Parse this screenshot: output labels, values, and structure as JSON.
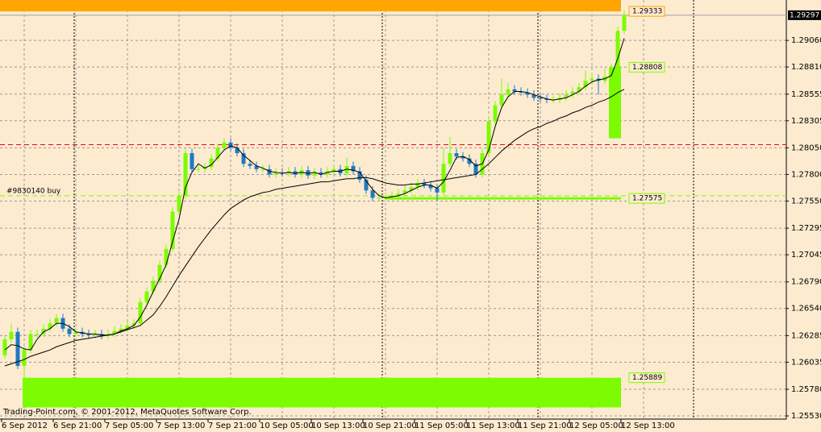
{
  "chart_data": {
    "type": "candlestick",
    "up_color": "#7cfc00",
    "down_color": "#1f7ac0",
    "background": "#fdebd0",
    "grid": true,
    "ylim": [
      1.255,
      1.2944
    ],
    "yticks": [
      {
        "value": 1.2906,
        "label": "1.29060"
      },
      {
        "value": 1.2881,
        "label": "1.28810"
      },
      1.28555,
      1.28305,
      {
        "value": 1.2805,
        "label": "1.28050"
      },
      {
        "value": 1.278,
        "label": "1.27800"
      },
      {
        "value": 1.2755,
        "label": "1.27550"
      },
      1.27295,
      1.27045,
      {
        "value": 1.2679,
        "label": "1.26790"
      },
      {
        "value": 1.2654,
        "label": "1.26540"
      },
      1.26285,
      1.26035,
      {
        "value": 1.2578,
        "label": "1.25780"
      },
      {
        "value": 1.2553,
        "label": "1.25530"
      }
    ],
    "last_price": 1.29297,
    "categories": [
      "6 Sep 2012",
      null,
      null,
      null,
      null,
      null,
      null,
      null,
      "6 Sep 21:00",
      null,
      null,
      null,
      null,
      null,
      null,
      null,
      "7 Sep 05:00",
      null,
      null,
      null,
      null,
      null,
      null,
      null,
      "7 Sep 13:00",
      null,
      null,
      null,
      null,
      null,
      null,
      null,
      "7 Sep 21:00",
      null,
      null,
      null,
      null,
      null,
      null,
      null,
      "10 Sep 05:00",
      null,
      null,
      null,
      null,
      null,
      null,
      null,
      "10 Sep 13:00",
      null,
      null,
      null,
      null,
      null,
      null,
      null,
      "10 Sep 21:00",
      null,
      null,
      null,
      null,
      null,
      null,
      null,
      "11 Sep 05:00",
      null,
      null,
      null,
      null,
      null,
      null,
      null,
      "11 Sep 13:00",
      null,
      null,
      null,
      null,
      null,
      null,
      null,
      "11 Sep 21:00",
      null,
      null,
      null,
      null,
      null,
      null,
      null,
      "12 Sep 05:00",
      null,
      null,
      null,
      null,
      null,
      null,
      null,
      "12 Sep 13:00"
    ],
    "candles": [
      [
        1.261,
        1.2629,
        1.2607,
        1.2625
      ],
      [
        1.2625,
        1.264,
        1.2622,
        1.2632
      ],
      [
        1.2632,
        1.2636,
        1.2597,
        1.26
      ],
      [
        1.26,
        1.2619,
        1.2561,
        1.2615
      ],
      [
        1.2615,
        1.2634,
        1.2612,
        1.263
      ],
      [
        1.263,
        1.2634,
        1.2627,
        1.263
      ],
      [
        1.263,
        1.2639,
        1.2627,
        1.2635
      ],
      [
        1.2635,
        1.2644,
        1.2632,
        1.264
      ],
      [
        1.264,
        1.2649,
        1.2637,
        1.2645
      ],
      [
        1.2645,
        1.2649,
        1.2632,
        1.2635
      ],
      [
        1.2635,
        1.2639,
        1.2627,
        1.263
      ],
      [
        1.263,
        1.2636,
        1.2627,
        1.2632
      ],
      [
        1.2632,
        1.2636,
        1.2627,
        1.263
      ],
      [
        1.263,
        1.2634,
        1.2626,
        1.2629
      ],
      [
        1.2629,
        1.2634,
        1.2626,
        1.263
      ],
      [
        1.263,
        1.2634,
        1.2625,
        1.2628
      ],
      [
        1.2628,
        1.2634,
        1.2625,
        1.263
      ],
      [
        1.263,
        1.2637,
        1.2627,
        1.2633
      ],
      [
        1.2633,
        1.2639,
        1.263,
        1.2635
      ],
      [
        1.2635,
        1.2642,
        1.2632,
        1.2638
      ],
      [
        1.2638,
        1.2644,
        1.2635,
        1.264
      ],
      [
        1.264,
        1.2664,
        1.2637,
        1.266
      ],
      [
        1.266,
        1.2674,
        1.2657,
        1.267
      ],
      [
        1.267,
        1.2684,
        1.2667,
        1.268
      ],
      [
        1.268,
        1.2699,
        1.2677,
        1.2695
      ],
      [
        1.2695,
        1.2714,
        1.2692,
        1.271
      ],
      [
        1.271,
        1.2749,
        1.2707,
        1.2745
      ],
      [
        1.2745,
        1.2764,
        1.2742,
        1.276
      ],
      [
        1.276,
        1.2804,
        1.2757,
        1.28
      ],
      [
        1.28,
        1.2804,
        1.2782,
        1.2785
      ],
      [
        1.2785,
        1.2789,
        1.2782,
        1.2785
      ],
      [
        1.2785,
        1.2791,
        1.2782,
        1.2787
      ],
      [
        1.2787,
        1.2799,
        1.2784,
        1.2795
      ],
      [
        1.2795,
        1.2809,
        1.2792,
        1.2805
      ],
      [
        1.2805,
        1.2814,
        1.2802,
        1.281
      ],
      [
        1.281,
        1.2814,
        1.2802,
        1.2805
      ],
      [
        1.2805,
        1.2809,
        1.2797,
        1.28
      ],
      [
        1.28,
        1.2804,
        1.2787,
        1.279
      ],
      [
        1.279,
        1.2794,
        1.2785,
        1.2788
      ],
      [
        1.2788,
        1.2792,
        1.2782,
        1.2785
      ],
      [
        1.2785,
        1.2789,
        1.2782,
        1.2785
      ],
      [
        1.2785,
        1.2789,
        1.2777,
        1.278
      ],
      [
        1.278,
        1.2786,
        1.2777,
        1.2782
      ],
      [
        1.2782,
        1.2786,
        1.2778,
        1.2781
      ],
      [
        1.2781,
        1.2787,
        1.2778,
        1.2783
      ],
      [
        1.2783,
        1.2787,
        1.2777,
        1.278
      ],
      [
        1.278,
        1.2788,
        1.2777,
        1.2784
      ],
      [
        1.2784,
        1.2788,
        1.2776,
        1.2779
      ],
      [
        1.2779,
        1.2786,
        1.2776,
        1.2782
      ],
      [
        1.2782,
        1.2786,
        1.2777,
        1.278
      ],
      [
        1.278,
        1.2787,
        1.2777,
        1.2783
      ],
      [
        1.2783,
        1.2789,
        1.278,
        1.2785
      ],
      [
        1.2785,
        1.2789,
        1.2778,
        1.2781
      ],
      [
        1.2781,
        1.2796,
        1.2778,
        1.2788
      ],
      [
        1.2788,
        1.2792,
        1.278,
        1.2783
      ],
      [
        1.2783,
        1.2787,
        1.2772,
        1.2775
      ],
      [
        1.2775,
        1.2779,
        1.2762,
        1.2765
      ],
      [
        1.2765,
        1.2769,
        1.2755,
        1.2758
      ],
      [
        1.2758,
        1.2762,
        1.2755,
        1.2758
      ],
      [
        1.2758,
        1.2763,
        1.2755,
        1.2759
      ],
      [
        1.2759,
        1.2764,
        1.2756,
        1.276
      ],
      [
        1.276,
        1.2766,
        1.2757,
        1.2762
      ],
      [
        1.2762,
        1.2769,
        1.2759,
        1.2765
      ],
      [
        1.2765,
        1.2772,
        1.2762,
        1.2768
      ],
      [
        1.2768,
        1.2776,
        1.2765,
        1.2772
      ],
      [
        1.2772,
        1.2776,
        1.2767,
        1.277
      ],
      [
        1.277,
        1.2774,
        1.2764,
        1.2767
      ],
      [
        1.2767,
        1.2771,
        1.2755,
        1.2763
      ],
      [
        1.2763,
        1.2805,
        1.276,
        1.279
      ],
      [
        1.279,
        1.2815,
        1.2787,
        1.28
      ],
      [
        1.28,
        1.2804,
        1.2794,
        1.2797
      ],
      [
        1.2797,
        1.2801,
        1.2792,
        1.2795
      ],
      [
        1.2795,
        1.2799,
        1.2787,
        1.279
      ],
      [
        1.279,
        1.2794,
        1.2777,
        1.278
      ],
      [
        1.278,
        1.2804,
        1.2777,
        1.28
      ],
      [
        1.28,
        1.2834,
        1.2797,
        1.283
      ],
      [
        1.283,
        1.2849,
        1.2827,
        1.2845
      ],
      [
        1.2845,
        1.287,
        1.2842,
        1.2855
      ],
      [
        1.2855,
        1.2866,
        1.2852,
        1.286
      ],
      [
        1.286,
        1.2864,
        1.2855,
        1.2858
      ],
      [
        1.2858,
        1.2862,
        1.2854,
        1.2857
      ],
      [
        1.2857,
        1.2861,
        1.2852,
        1.2855
      ],
      [
        1.2855,
        1.2859,
        1.2849,
        1.2852
      ],
      [
        1.2852,
        1.2856,
        1.2848,
        1.2851
      ],
      [
        1.2851,
        1.2855,
        1.2847,
        1.285
      ],
      [
        1.285,
        1.2854,
        1.2847,
        1.285
      ],
      [
        1.285,
        1.2856,
        1.2847,
        1.2852
      ],
      [
        1.2852,
        1.2859,
        1.2849,
        1.2855
      ],
      [
        1.2855,
        1.2862,
        1.2852,
        1.2858
      ],
      [
        1.2858,
        1.2866,
        1.2855,
        1.2862
      ],
      [
        1.2862,
        1.2878,
        1.2859,
        1.2868
      ],
      [
        1.2868,
        1.2876,
        1.2865,
        1.287
      ],
      [
        1.287,
        1.2874,
        1.2855,
        1.2868
      ],
      [
        1.2868,
        1.288,
        1.2865,
        1.2872
      ],
      [
        1.2872,
        1.2884,
        1.2869,
        1.288
      ],
      [
        1.288,
        1.2919,
        1.2877,
        1.2915
      ],
      [
        1.2915,
        1.2934,
        1.2912,
        1.293
      ]
    ],
    "moving_averages": [
      {
        "color": "#000000",
        "values": [
          1.2615,
          1.262,
          1.2619,
          1.2616,
          1.2615,
          1.2625,
          1.2632,
          1.2635,
          1.264,
          1.264,
          1.2637,
          1.2632,
          1.2631,
          1.263,
          1.263,
          1.2629,
          1.2629,
          1.263,
          1.2633,
          1.2635,
          1.2638,
          1.2646,
          1.2657,
          1.267,
          1.2682,
          1.2695,
          1.2717,
          1.2738,
          1.2768,
          1.2782,
          1.279,
          1.2786,
          1.2789,
          1.2796,
          1.2803,
          1.2807,
          1.2805,
          1.2798,
          1.2793,
          1.2788,
          1.2786,
          1.2783,
          1.2782,
          1.2781,
          1.2782,
          1.2781,
          1.2782,
          1.2781,
          1.2782,
          1.278,
          1.2782,
          1.2783,
          1.2783,
          1.2785,
          1.2784,
          1.2782,
          1.2774,
          1.2766,
          1.276,
          1.2758,
          1.2759,
          1.276,
          1.2762,
          1.2765,
          1.2768,
          1.277,
          1.277,
          1.2767,
          1.2773,
          1.2784,
          1.2796,
          1.2797,
          1.2794,
          1.2788,
          1.279,
          1.2803,
          1.2825,
          1.2843,
          1.2853,
          1.2858,
          1.2858,
          1.2857,
          1.2855,
          1.2853,
          1.2851,
          1.285,
          1.2851,
          1.2852,
          1.2855,
          1.2858,
          1.2863,
          1.2867,
          1.2869,
          1.287,
          1.2873,
          1.2889,
          1.2908
        ]
      },
      {
        "color": "#000000",
        "values": [
          1.26,
          1.2602,
          1.2604,
          1.2606,
          1.2609,
          1.2611,
          1.2613,
          1.2615,
          1.2618,
          1.262,
          1.2622,
          1.2624,
          1.2625,
          1.2626,
          1.2627,
          1.2628,
          1.2629,
          1.263,
          1.2632,
          1.2634,
          1.2636,
          1.2638,
          1.2643,
          1.2648,
          1.2656,
          1.2665,
          1.2675,
          1.2685,
          1.2694,
          1.2703,
          1.2712,
          1.272,
          1.2728,
          1.2735,
          1.2742,
          1.2748,
          1.2752,
          1.2756,
          1.2759,
          1.2761,
          1.2763,
          1.2764,
          1.2766,
          1.2767,
          1.2768,
          1.2769,
          1.277,
          1.2771,
          1.2772,
          1.2773,
          1.2773,
          1.2774,
          1.2775,
          1.2776,
          1.2776,
          1.2777,
          1.2777,
          1.2776,
          1.2774,
          1.2772,
          1.2771,
          1.277,
          1.277,
          1.2771,
          1.2771,
          1.2772,
          1.2773,
          1.2774,
          1.2775,
          1.2776,
          1.2777,
          1.2778,
          1.2779,
          1.278,
          1.2785,
          1.279,
          1.2796,
          1.2802,
          1.2807,
          1.2812,
          1.2816,
          1.282,
          1.2823,
          1.2825,
          1.2828,
          1.283,
          1.2833,
          1.2835,
          1.2838,
          1.284,
          1.2843,
          1.2845,
          1.2848,
          1.285,
          1.2853,
          1.2857,
          1.286
        ]
      }
    ],
    "zones": [
      {
        "value": 1.29333,
        "to": 1.2944,
        "color": "#ffa500"
      },
      {
        "value": 1.28808,
        "to": 1.2814,
        "color": "#7cfc00"
      },
      {
        "value": 1.25889,
        "to": 1.2561,
        "color": "#7cfc00"
      }
    ],
    "level_line": {
      "value": 1.27575,
      "color": "#7cfc00"
    },
    "lines": [
      {
        "value": 1.2808,
        "color": "#ff0000"
      },
      {
        "value": 1.276,
        "color": "#7cfc00",
        "label": "#9830140 buy"
      }
    ],
    "copyright": "Trading-Point.com, © 2001-2012, MetaQuotes Software Corp."
  }
}
